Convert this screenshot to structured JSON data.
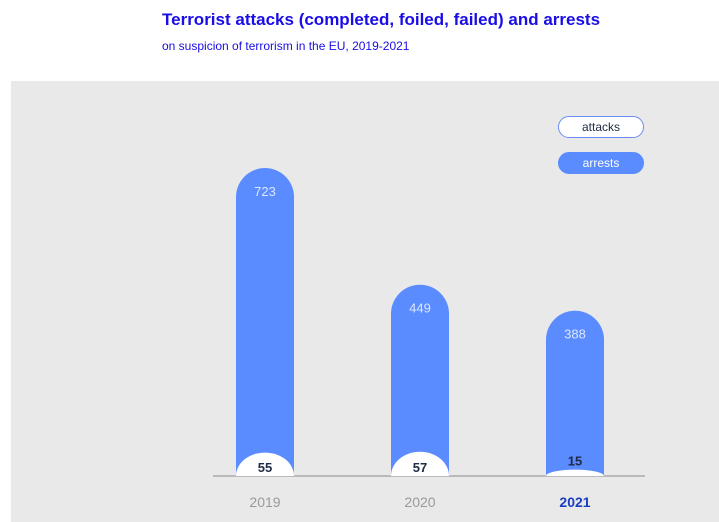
{
  "title": "Terrorist attacks (completed, foiled, failed) and arrests",
  "subtitle": "on suspicion of terrorism in the EU, 2019-2021",
  "legend": {
    "attacks": "attacks",
    "arrests": "arrests"
  },
  "colors": {
    "arrests": "#5b8cff",
    "attacks": "#ffffff",
    "title": "#1a0de6",
    "highlight": "#1a3fbf",
    "background": "#e9e9e9"
  },
  "chart_data": {
    "type": "bar",
    "categories": [
      "2019",
      "2020",
      "2021"
    ],
    "series": [
      {
        "name": "attacks",
        "values": [
          55,
          57,
          15
        ]
      },
      {
        "name": "arrests",
        "values": [
          723,
          449,
          388
        ]
      }
    ],
    "highlight_category": "2021",
    "legend_position": "top-right",
    "grid": false
  }
}
